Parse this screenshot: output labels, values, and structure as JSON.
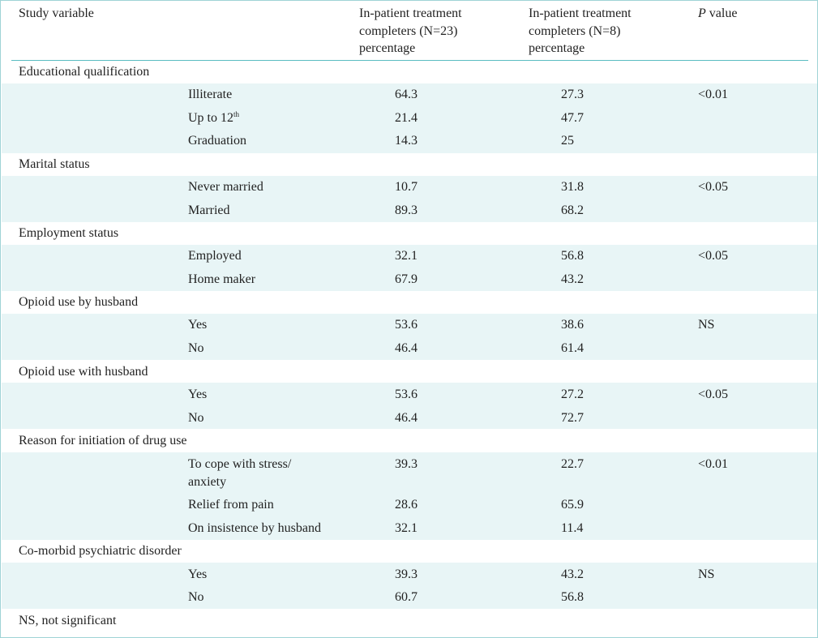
{
  "header": {
    "col1": "Study variable",
    "col3_lines": [
      "In-patient treatment",
      "completers (N=23)",
      "percentage"
    ],
    "col4_lines": [
      "In-patient treatment",
      "completers (N=8)",
      "percentage"
    ],
    "col5_italic": "P",
    "col5_rest": " value"
  },
  "sections": [
    {
      "title": "Educational qualification",
      "rows": [
        {
          "label": "Illiterate",
          "a": "64.3",
          "b": "27.3",
          "p": "<0.01"
        },
        {
          "label": "Up to 12",
          "sup": "th",
          "a": "21.4",
          "b": "47.7",
          "p": ""
        },
        {
          "label": "Graduation",
          "a": "14.3",
          "b": "25",
          "p": ""
        }
      ]
    },
    {
      "title": "Marital status",
      "rows": [
        {
          "label": "Never married",
          "a": "10.7",
          "b": "31.8",
          "p": "<0.05"
        },
        {
          "label": "Married",
          "a": "89.3",
          "b": "68.2",
          "p": ""
        }
      ]
    },
    {
      "title": "Employment status",
      "rows": [
        {
          "label": "Employed",
          "a": "32.1",
          "b": "56.8",
          "p": "<0.05"
        },
        {
          "label": "Home maker",
          "a": "67.9",
          "b": "43.2",
          "p": ""
        }
      ]
    },
    {
      "title": "Opioid use by husband",
      "rows": [
        {
          "label": "Yes",
          "a": "53.6",
          "b": "38.6",
          "p": "NS"
        },
        {
          "label": "No",
          "a": "46.4",
          "b": "61.4",
          "p": ""
        }
      ]
    },
    {
      "title": "Opioid use with husband",
      "rows": [
        {
          "label": "Yes",
          "a": "53.6",
          "b": "27.2",
          "p": "<0.05"
        },
        {
          "label": "No",
          "a": "46.4",
          "b": "72.7",
          "p": ""
        }
      ]
    },
    {
      "title": "Reason for initiation of drug use",
      "rows": [
        {
          "label_lines": [
            "To cope with stress/",
            "anxiety"
          ],
          "a": "39.3",
          "b": "22.7",
          "p": "<0.01"
        },
        {
          "label": "Relief from pain",
          "a": "28.6",
          "b": "65.9",
          "p": ""
        },
        {
          "label": "On insistence by husband",
          "a": "32.1",
          "b": "11.4",
          "p": ""
        }
      ]
    },
    {
      "title": "Co-morbid psychiatric disorder",
      "rows": [
        {
          "label": "Yes",
          "a": "39.3",
          "b": "43.2",
          "p": "NS"
        },
        {
          "label": "No",
          "a": "60.7",
          "b": "56.8",
          "p": ""
        }
      ]
    }
  ],
  "footnote": "NS, not significant",
  "colors": {
    "band": "#e8f5f6",
    "rule": "#5bbcc2",
    "border": "#9fd3d6"
  }
}
